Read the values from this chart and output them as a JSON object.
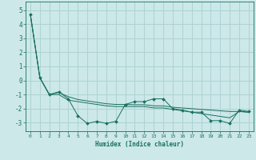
{
  "xlabel": "Humidex (Indice chaleur)",
  "background_color": "#cce8e8",
  "grid_color": "#aacfcf",
  "line_color": "#1a7060",
  "xlim": [
    -0.5,
    23.5
  ],
  "ylim": [
    -3.6,
    5.6
  ],
  "xticks": [
    0,
    1,
    2,
    3,
    4,
    5,
    6,
    7,
    8,
    9,
    10,
    11,
    12,
    13,
    14,
    15,
    16,
    17,
    18,
    19,
    20,
    21,
    22,
    23
  ],
  "yticks": [
    -3,
    -2,
    -1,
    0,
    1,
    2,
    3,
    4,
    5
  ],
  "line1_x": [
    0,
    1,
    2,
    3,
    4,
    5,
    6,
    7,
    8,
    9,
    10,
    11,
    12,
    13,
    14,
    15,
    16,
    17,
    18,
    19,
    20,
    21,
    22,
    23
  ],
  "line1_y": [
    4.7,
    0.2,
    -1.0,
    -0.8,
    -1.3,
    -2.5,
    -3.05,
    -2.9,
    -3.05,
    -2.9,
    -1.7,
    -1.5,
    -1.5,
    -1.3,
    -1.3,
    -2.0,
    -2.1,
    -2.25,
    -2.25,
    -2.85,
    -2.85,
    -3.05,
    -2.1,
    -2.2
  ],
  "line2_x": [
    0,
    1,
    2,
    3,
    4,
    5,
    6,
    7,
    8,
    9,
    10,
    11,
    12,
    13,
    14,
    15,
    16,
    17,
    18,
    19,
    20,
    21,
    22,
    23
  ],
  "line2_y": [
    4.7,
    0.2,
    -1.0,
    -0.85,
    -1.15,
    -1.35,
    -1.45,
    -1.55,
    -1.65,
    -1.7,
    -1.7,
    -1.72,
    -1.72,
    -1.8,
    -1.8,
    -1.9,
    -1.95,
    -2.0,
    -2.05,
    -2.1,
    -2.15,
    -2.2,
    -2.2,
    -2.25
  ],
  "line3_x": [
    0,
    1,
    2,
    3,
    4,
    5,
    6,
    7,
    8,
    9,
    10,
    11,
    12,
    13,
    14,
    15,
    16,
    17,
    18,
    19,
    20,
    21,
    22,
    23
  ],
  "line3_y": [
    4.7,
    0.2,
    -1.0,
    -1.0,
    -1.4,
    -1.5,
    -1.6,
    -1.7,
    -1.8,
    -1.85,
    -1.85,
    -1.85,
    -1.85,
    -1.95,
    -1.95,
    -2.05,
    -2.15,
    -2.25,
    -2.35,
    -2.45,
    -2.55,
    -2.65,
    -2.2,
    -2.25
  ]
}
